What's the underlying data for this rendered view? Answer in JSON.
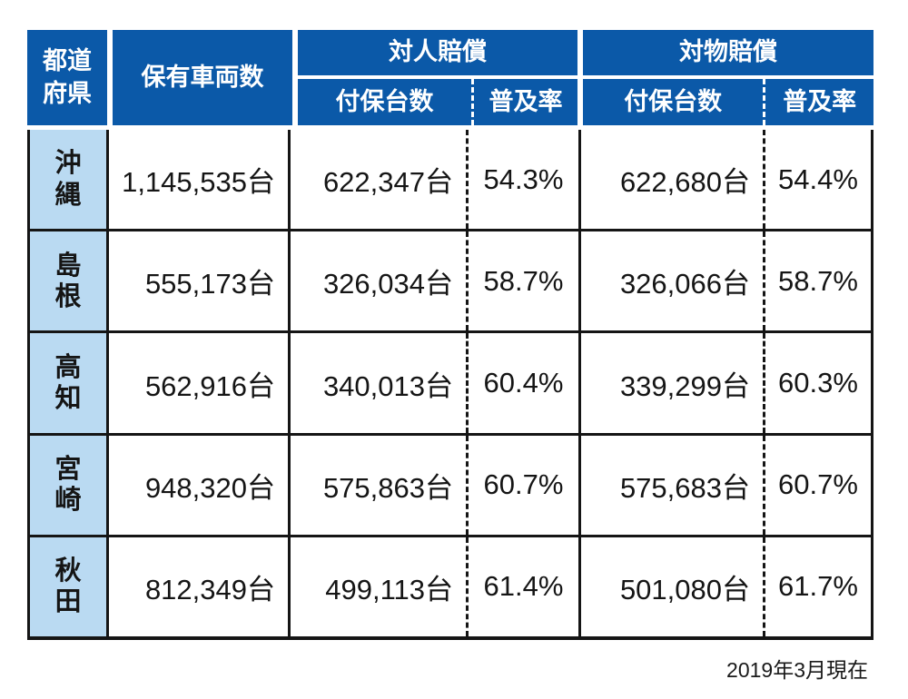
{
  "table": {
    "header": {
      "prefecture": "都道\n府県",
      "vehicles": "保有車両数",
      "personal_group": "対人賠償",
      "property_group": "対物賠償",
      "insured": "付保台数",
      "rate": "普及率"
    },
    "rows": [
      {
        "prefecture": "沖\n縄",
        "vehicles": "1,145,535台",
        "personal_insured": "622,347台",
        "personal_rate": "54.3%",
        "property_insured": "622,680台",
        "property_rate": "54.4%"
      },
      {
        "prefecture": "島\n根",
        "vehicles": "555,173台",
        "personal_insured": "326,034台",
        "personal_rate": "58.7%",
        "property_insured": "326,066台",
        "property_rate": "58.7%"
      },
      {
        "prefecture": "高\n知",
        "vehicles": "562,916台",
        "personal_insured": "340,013台",
        "personal_rate": "60.4%",
        "property_insured": "339,299台",
        "property_rate": "60.3%"
      },
      {
        "prefecture": "宮\n崎",
        "vehicles": "948,320台",
        "personal_insured": "575,863台",
        "personal_rate": "60.7%",
        "property_insured": "575,683台",
        "property_rate": "60.7%"
      },
      {
        "prefecture": "秋\n田",
        "vehicles": "812,349台",
        "personal_insured": "499,113台",
        "personal_rate": "61.4%",
        "property_insured": "501,080台",
        "property_rate": "61.7%"
      }
    ],
    "footnote": "2019年3月現在"
  },
  "chart_data": {
    "type": "table",
    "columns": [
      "都道府県",
      "保有車両数",
      "対人賠償 付保台数",
      "対人賠償 普及率",
      "対物賠償 付保台数",
      "対物賠償 普及率"
    ],
    "rows": [
      [
        "沖縄",
        1145535,
        622347,
        54.3,
        622680,
        54.4
      ],
      [
        "島根",
        555173,
        326034,
        58.7,
        326066,
        58.7
      ],
      [
        "高知",
        562916,
        340013,
        60.4,
        339299,
        60.3
      ],
      [
        "宮崎",
        948320,
        575863,
        60.7,
        575683,
        60.7
      ],
      [
        "秋田",
        812349,
        499113,
        61.4,
        501080,
        61.7
      ]
    ],
    "units": {
      "counts": "台",
      "rates": "%"
    },
    "footnote": "2019年3月現在"
  },
  "colors": {
    "header_bg": "#0b59a8",
    "header_text": "#ffffff",
    "prefecture_bg": "#badaf2",
    "border": "#151515",
    "text": "#151515",
    "page_bg": "#ffffff"
  }
}
